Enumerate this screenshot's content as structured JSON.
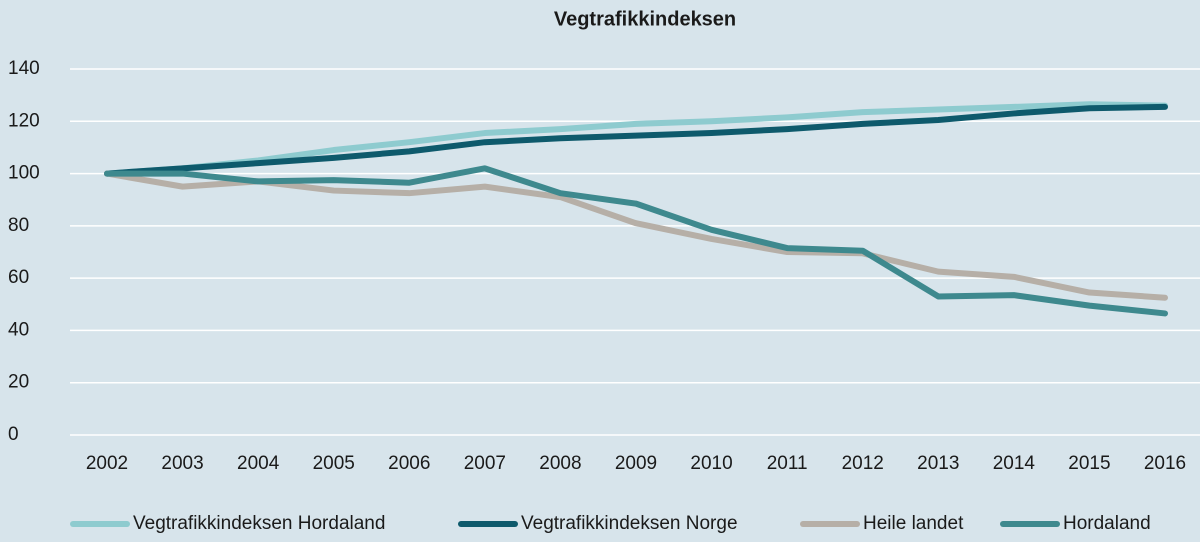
{
  "chart_data": {
    "type": "line",
    "title": "Vegtrafikkindeksen",
    "categories": [
      "2002",
      "2003",
      "2004",
      "2005",
      "2006",
      "2007",
      "2008",
      "2009",
      "2010",
      "2011",
      "2012",
      "2013",
      "2014",
      "2015",
      "2016"
    ],
    "series": [
      {
        "name": "Vegtrafikkindeksen Hordaland",
        "color": "#8ecbcf",
        "values": [
          100,
          102,
          105,
          109,
          112,
          115.5,
          117,
          119,
          120,
          121.5,
          123.5,
          124.5,
          125.5,
          126.5,
          126
        ]
      },
      {
        "name": "Vegtrafikkindeksen Norge",
        "color": "#0e5a6c",
        "values": [
          100,
          102,
          104,
          106,
          108.5,
          112,
          113.5,
          114.5,
          115.5,
          117,
          119,
          120.5,
          123,
          125,
          125.5
        ]
      },
      {
        "name": "Heile landet",
        "color": "#b6afa7",
        "values": [
          100,
          95,
          97,
          93.5,
          92.5,
          95,
          91,
          81,
          75,
          70,
          69.5,
          62.5,
          60.5,
          54.5,
          52.5
        ]
      },
      {
        "name": "Hordaland",
        "color": "#3e898e",
        "values": [
          100,
          100,
          97,
          97.5,
          96.5,
          102,
          92.5,
          88.5,
          78.5,
          71.5,
          70.5,
          53,
          53.5,
          49.5,
          46.5
        ]
      }
    ],
    "ylim": [
      0,
      140
    ],
    "yticks": [
      0,
      20,
      40,
      60,
      80,
      100,
      120,
      140
    ],
    "grid": true,
    "legend": "bottom"
  }
}
